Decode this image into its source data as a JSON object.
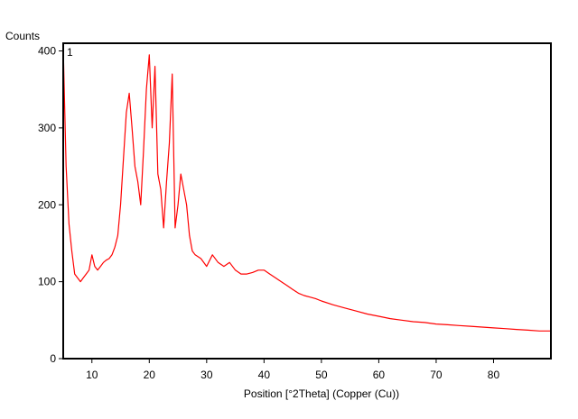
{
  "chart_data": {
    "type": "line",
    "title": "",
    "xlabel": "Position [°2Theta] (Copper (Cu))",
    "ylabel": "Counts",
    "series_label": "1",
    "xlim": [
      5,
      90
    ],
    "ylim": [
      0,
      410
    ],
    "xticks": [
      10,
      20,
      30,
      40,
      50,
      60,
      70,
      80
    ],
    "yticks": [
      0,
      100,
      200,
      300,
      400
    ],
    "grid": false,
    "line_color": "#ff0000",
    "series": [
      {
        "x": [
          5.0,
          5.5,
          6.0,
          6.5,
          7.0,
          7.5,
          8.0,
          8.5,
          9.0,
          9.5,
          10.0,
          10.5,
          11.0,
          11.5,
          12.0,
          12.5,
          13.0,
          13.5,
          14.0,
          14.5,
          15.0,
          15.5,
          16.0,
          16.5,
          17.0,
          17.5,
          18.0,
          18.5,
          19.0,
          19.5,
          20.0,
          20.5,
          21.0,
          21.5,
          22.0,
          22.5,
          23.0,
          23.5,
          24.0,
          24.5,
          25.0,
          25.5,
          26.0,
          26.5,
          27.0,
          27.5,
          28.0,
          29.0,
          30.0,
          31.0,
          32.0,
          33.0,
          34.0,
          35.0,
          36.0,
          37.0,
          38.0,
          39.0,
          40.0,
          41.0,
          42.0,
          43.0,
          44.0,
          45.0,
          46.0,
          47.0,
          48.0,
          49.0,
          50.0,
          52.0,
          54.0,
          56.0,
          58.0,
          60.0,
          62.0,
          64.0,
          66.0,
          68.0,
          70.0,
          72.0,
          74.0,
          76.0,
          78.0,
          80.0,
          82.0,
          84.0,
          86.0,
          88.0,
          90.0
        ],
        "y": [
          405,
          250,
          175,
          140,
          110,
          105,
          100,
          105,
          110,
          115,
          135,
          120,
          115,
          120,
          125,
          128,
          130,
          135,
          145,
          160,
          200,
          260,
          320,
          345,
          300,
          250,
          230,
          200,
          270,
          350,
          395,
          300,
          380,
          240,
          220,
          170,
          230,
          280,
          370,
          170,
          200,
          240,
          220,
          200,
          160,
          140,
          135,
          130,
          120,
          135,
          125,
          120,
          125,
          115,
          110,
          110,
          112,
          115,
          115,
          110,
          105,
          100,
          95,
          90,
          85,
          82,
          80,
          78,
          75,
          70,
          66,
          62,
          58,
          55,
          52,
          50,
          48,
          47,
          45,
          44,
          43,
          42,
          41,
          40,
          39,
          38,
          37,
          36,
          36
        ]
      }
    ]
  }
}
